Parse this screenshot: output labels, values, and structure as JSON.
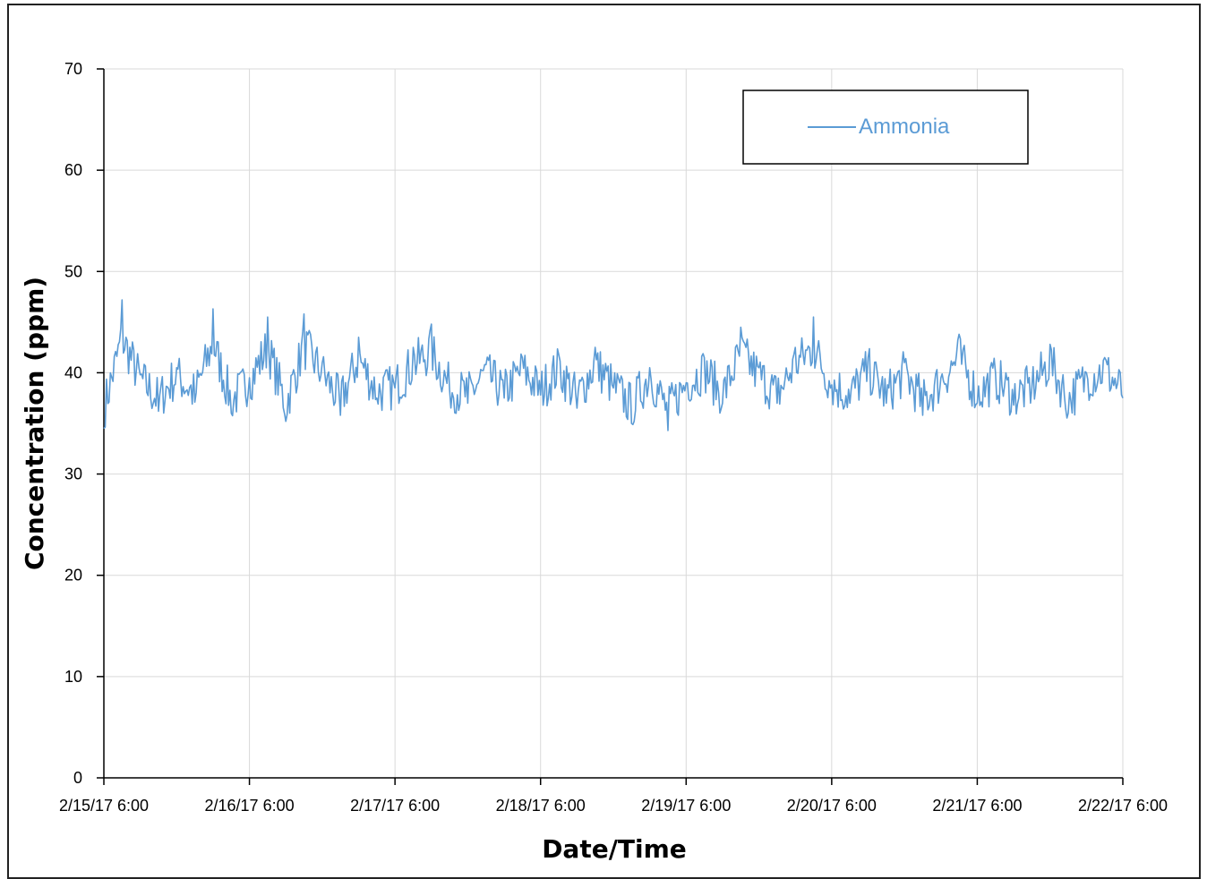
{
  "chart_data": {
    "type": "line",
    "title": "",
    "xlabel": "Date/Time",
    "ylabel": "Concentration (ppm)",
    "ylim": [
      0,
      70
    ],
    "yticks": [
      "0",
      "10",
      "20",
      "30",
      "40",
      "50",
      "60",
      "70"
    ],
    "xticks": [
      "2/15/17 6:00",
      "2/16/17 6:00",
      "2/17/17 6:00",
      "2/18/17 6:00",
      "2/19/17 6:00",
      "2/20/17 6:00",
      "2/21/17 6:00",
      "2/22/17 6:00"
    ],
    "grid": true,
    "legend_position": "top-right",
    "series": [
      {
        "name": "Ammonia",
        "color": "#5b9bd5",
        "x": [
          "2/15/17 6:00",
          "2/15/17 9:00",
          "2/15/17 12:00",
          "2/15/17 15:00",
          "2/15/17 18:00",
          "2/15/17 21:00",
          "2/16/17 0:00",
          "2/16/17 3:00",
          "2/16/17 6:00",
          "2/16/17 9:00",
          "2/16/17 12:00",
          "2/16/17 15:00",
          "2/16/17 18:00",
          "2/16/17 21:00",
          "2/17/17 0:00",
          "2/17/17 3:00",
          "2/17/17 6:00",
          "2/17/17 9:00",
          "2/17/17 12:00",
          "2/17/17 15:00",
          "2/17/17 18:00",
          "2/17/17 21:00",
          "2/18/17 0:00",
          "2/18/17 3:00",
          "2/18/17 6:00",
          "2/18/17 9:00",
          "2/18/17 12:00",
          "2/18/17 15:00",
          "2/18/17 18:00",
          "2/18/17 21:00",
          "2/19/17 0:00",
          "2/19/17 3:00",
          "2/19/17 6:00",
          "2/19/17 9:00",
          "2/19/17 12:00",
          "2/19/17 15:00",
          "2/19/17 18:00",
          "2/19/17 21:00",
          "2/20/17 0:00",
          "2/20/17 3:00",
          "2/20/17 6:00",
          "2/20/17 9:00",
          "2/20/17 12:00",
          "2/20/17 15:00",
          "2/20/17 18:00",
          "2/20/17 21:00",
          "2/21/17 0:00",
          "2/21/17 3:00",
          "2/21/17 6:00",
          "2/21/17 9:00",
          "2/21/17 12:00",
          "2/21/17 15:00",
          "2/21/17 18:00",
          "2/21/17 21:00",
          "2/22/17 0:00",
          "2/22/17 3:00",
          "2/22/17 6:00"
        ],
        "values": [
          34.5,
          47.2,
          39.8,
          36.2,
          40.5,
          37.1,
          46.3,
          36.0,
          39.5,
          45.5,
          35.2,
          45.8,
          41.0,
          35.8,
          43.5,
          37.5,
          38.5,
          42.5,
          44.8,
          38.3,
          37.0,
          40.8,
          37.5,
          41.5,
          37.8,
          41.8,
          36.5,
          42.5,
          38.5,
          35.0,
          40.5,
          34.3,
          39.0,
          41.5,
          37.0,
          44.5,
          40.5,
          37.0,
          42.5,
          45.5,
          38.8,
          37.0,
          41.5,
          37.0,
          41.0,
          35.8,
          39.5,
          43.8,
          37.0,
          40.0,
          36.8,
          38.5,
          42.8,
          36.0,
          40.0,
          41.5,
          37.5
        ]
      }
    ]
  }
}
